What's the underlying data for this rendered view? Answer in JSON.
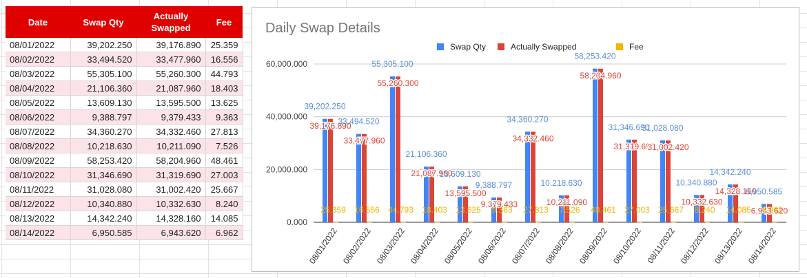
{
  "table": {
    "headers": [
      "Date",
      "Swap Qty",
      "Actually\nSwapped",
      "Fee"
    ],
    "rows": [
      [
        "08/01/2022",
        "39,202.250",
        "39,176.890",
        "25.359"
      ],
      [
        "08/02/2022",
        "33,494.520",
        "33,477.960",
        "16.556"
      ],
      [
        "08/03/2022",
        "55,305.100",
        "55,260.300",
        "44.793"
      ],
      [
        "08/04/2022",
        "21,106.360",
        "21,087.960",
        "18.403"
      ],
      [
        "08/05/2022",
        "13,609.130",
        "13,595.500",
        "13.625"
      ],
      [
        "08/06/2022",
        "9,388.797",
        "9,379.433",
        "9.363"
      ],
      [
        "08/07/2022",
        "34,360.270",
        "34,332.460",
        "27.813"
      ],
      [
        "08/08/2022",
        "10,218.630",
        "10,211.090",
        "7.526"
      ],
      [
        "08/09/2022",
        "58,253.420",
        "58,204.960",
        "48.461"
      ],
      [
        "08/10/2022",
        "31,346.690",
        "31,319.690",
        "27.003"
      ],
      [
        "08/11/2022",
        "31,028.080",
        "31,002.420",
        "25.667"
      ],
      [
        "08/12/2022",
        "10,340.880",
        "10,332.630",
        "8.240"
      ],
      [
        "08/13/2022",
        "14,342.240",
        "14,328.160",
        "14.085"
      ],
      [
        "08/14/2022",
        "6,950.585",
        "6,943.620",
        "6.962"
      ]
    ]
  },
  "chart_data": {
    "type": "bar",
    "title": "Daily Swap Details",
    "xlabel": "",
    "ylabel": "",
    "ylim": [
      0,
      60000
    ],
    "yticks": [
      "0.000",
      "20,000.000",
      "40,000.000",
      "60,000.000"
    ],
    "grid": true,
    "legend_position": "top",
    "categories": [
      "08/01/2022",
      "08/02/2022",
      "08/03/2022",
      "08/04/2022",
      "08/05/2022",
      "08/06/2022",
      "08/07/2022",
      "08/08/2022",
      "08/09/2022",
      "08/10/2022",
      "08/11/2022",
      "08/12/2022",
      "08/13/2022",
      "08/14/2022"
    ],
    "series": [
      {
        "name": "Swap Qty",
        "color": "#4285f4",
        "values": [
          39202.25,
          33494.52,
          55305.1,
          21106.36,
          13609.13,
          9388.797,
          34360.27,
          10218.63,
          58253.42,
          31346.69,
          31028.08,
          10340.88,
          14342.24,
          6950.585
        ],
        "labels": [
          "39,202.250",
          "33,494.520",
          "55,305.100",
          "21,106.360",
          "13,609.130",
          "9,388.797",
          "34,360.270",
          "10,218.630",
          "58,253.420",
          "31,346.690",
          "31,028.080",
          "10,340.880",
          "14,342.240",
          "6,950.585"
        ]
      },
      {
        "name": "Actually Swapped",
        "color": "#db4437",
        "values": [
          39176.89,
          33477.96,
          55260.3,
          21087.96,
          13595.5,
          9379.433,
          34332.46,
          10211.09,
          58204.96,
          31319.69,
          31002.42,
          10332.63,
          14328.16,
          6943.62
        ],
        "labels": [
          "39,176.890",
          "33,477.960",
          "55,260.300",
          "21,087.960",
          "13,595.500",
          "9,379.433",
          "34,332.460",
          "10,211.090",
          "58,204.960",
          "31,319.690",
          "31,002.420",
          "10,332.630",
          "14,328.160",
          "6,943.620"
        ]
      },
      {
        "name": "Fee",
        "color": "#f4b400",
        "values": [
          25.359,
          16.556,
          44.793,
          18.403,
          13.625,
          9.363,
          27.813,
          7.526,
          48.461,
          27.003,
          25.667,
          8.24,
          14.085,
          6.962
        ],
        "labels": [
          "25.359",
          "16.556",
          "44.793",
          "18.403",
          "13.625",
          "9.363",
          "27.813",
          "7.526",
          "48.461",
          "27.003",
          "25.667",
          "8.240",
          "14.085",
          "6.962"
        ]
      }
    ]
  }
}
